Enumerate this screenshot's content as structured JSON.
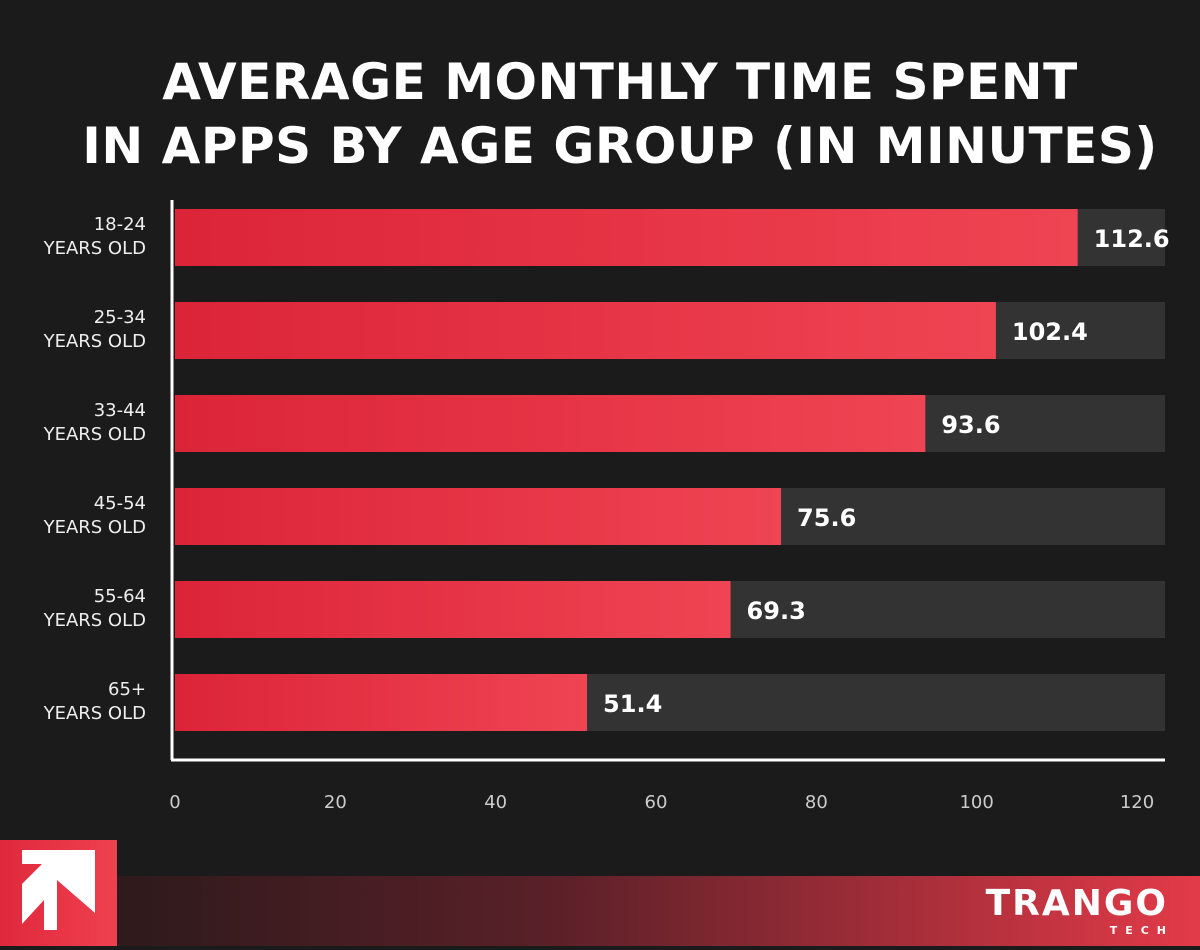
{
  "chart_data": {
    "type": "bar",
    "orientation": "horizontal",
    "title": [
      "AVERAGE MONTHLY TIME SPENT",
      "IN APPS BY AGE GROUP (IN MINUTES)"
    ],
    "categories": [
      [
        "18-24",
        "YEARS OLD"
      ],
      [
        "25-34",
        "YEARS OLD"
      ],
      [
        "33-44",
        "YEARS OLD"
      ],
      [
        "45-54",
        "YEARS OLD"
      ],
      [
        "55-64",
        "YEARS OLD"
      ],
      [
        "65+",
        "YEARS OLD"
      ]
    ],
    "values": [
      112.6,
      102.4,
      93.6,
      75.6,
      69.3,
      51.4
    ],
    "xlim": [
      0,
      120
    ],
    "xticks": [
      "0",
      "20",
      "40",
      "60",
      "80",
      "100",
      "120"
    ],
    "grid": false,
    "colors": {
      "bar_start": "#dc2438",
      "bar_end": "#ef4453",
      "track": "#333333",
      "background": "#1b1b1b"
    }
  },
  "brand": {
    "name": "TRANGO",
    "sub": "TECH"
  }
}
